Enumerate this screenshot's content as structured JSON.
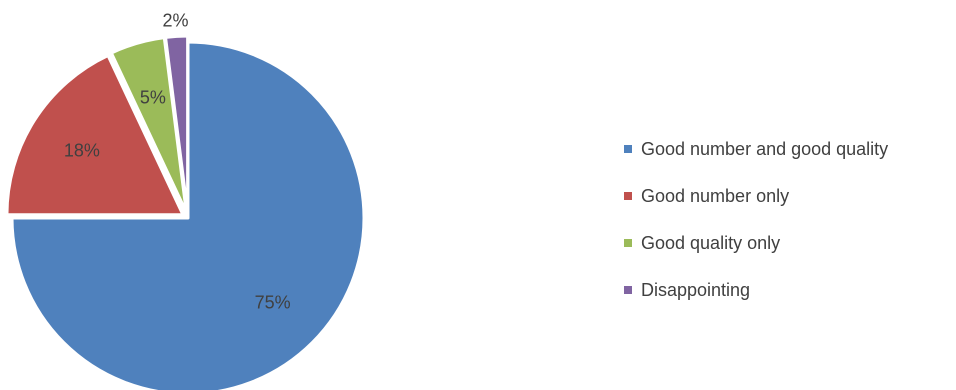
{
  "chart_data": {
    "type": "pie",
    "title": "",
    "start_angle_deg": 0,
    "direction": "clockwise",
    "legend_position": "right",
    "slices": [
      {
        "label": "Good number and good quality",
        "value": 75,
        "value_label": "75%",
        "color": "#4F81BD",
        "exploded": false
      },
      {
        "label": "Good number only",
        "value": 18,
        "value_label": "18%",
        "color": "#C0504D",
        "exploded": true
      },
      {
        "label": "Good quality only",
        "value": 5,
        "value_label": "5%",
        "color": "#9BBB59",
        "exploded": true
      },
      {
        "label": "Disappointing",
        "value": 2,
        "value_label": "2%",
        "color": "#8064A2",
        "exploded": true
      }
    ]
  }
}
